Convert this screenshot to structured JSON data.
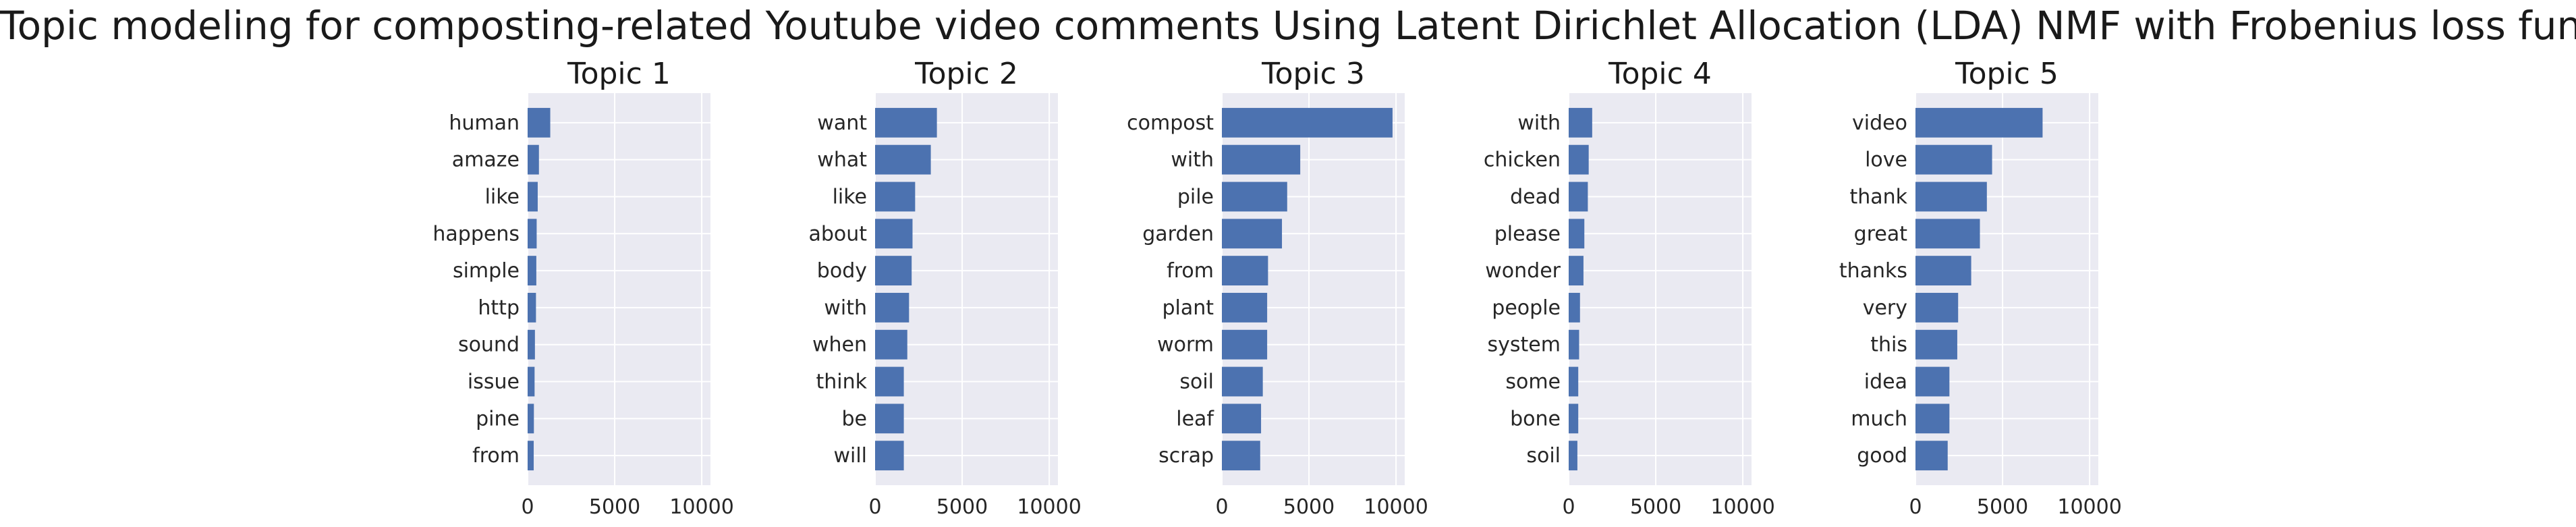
{
  "title": "Topic modeling for composting-related Youtube video comments Using Latent Dirichlet Allocation (LDA) NMF with Frobenius loss function",
  "colors": {
    "bar": "#4c72b0",
    "axes_background": "#eaeaf2",
    "grid": "#ffffff"
  },
  "chart_data": [
    {
      "type": "bar",
      "orientation": "horizontal",
      "title": "Topic 1",
      "categories": [
        "human",
        "amaze",
        "like",
        "happens",
        "simple",
        "http",
        "sound",
        "issue",
        "pine",
        "from"
      ],
      "values": [
        1300,
        650,
        580,
        520,
        500,
        480,
        420,
        400,
        360,
        350
      ],
      "xlim": [
        0,
        10500
      ],
      "xticks": [
        0,
        5000,
        10000
      ],
      "grid": true
    },
    {
      "type": "bar",
      "orientation": "horizontal",
      "title": "Topic 2",
      "categories": [
        "want",
        "what",
        "like",
        "about",
        "body",
        "with",
        "when",
        "think",
        "be",
        "will"
      ],
      "values": [
        3550,
        3200,
        2300,
        2150,
        2100,
        1950,
        1850,
        1650,
        1650,
        1650
      ],
      "xlim": [
        0,
        10500
      ],
      "xticks": [
        0,
        5000,
        10000
      ],
      "grid": true
    },
    {
      "type": "bar",
      "orientation": "horizontal",
      "title": "Topic 3",
      "categories": [
        "compost",
        "with",
        "pile",
        "garden",
        "from",
        "plant",
        "worm",
        "soil",
        "leaf",
        "scrap"
      ],
      "values": [
        9800,
        4500,
        3750,
        3450,
        2650,
        2600,
        2600,
        2350,
        2250,
        2200
      ],
      "xlim": [
        0,
        10500
      ],
      "xticks": [
        0,
        5000,
        10000
      ],
      "grid": true
    },
    {
      "type": "bar",
      "orientation": "horizontal",
      "title": "Topic 4",
      "categories": [
        "with",
        "chicken",
        "dead",
        "please",
        "wonder",
        "people",
        "system",
        "some",
        "bone",
        "soil"
      ],
      "values": [
        1350,
        1150,
        1100,
        900,
        850,
        650,
        600,
        550,
        550,
        500
      ],
      "xlim": [
        0,
        10500
      ],
      "xticks": [
        0,
        5000,
        10000
      ],
      "grid": true
    },
    {
      "type": "bar",
      "orientation": "horizontal",
      "title": "Topic 5",
      "categories": [
        "video",
        "love",
        "thank",
        "great",
        "thanks",
        "very",
        "this",
        "idea",
        "much",
        "good"
      ],
      "values": [
        7300,
        4400,
        4100,
        3700,
        3200,
        2450,
        2400,
        1950,
        1950,
        1850
      ],
      "xlim": [
        0,
        10500
      ],
      "xticks": [
        0,
        5000,
        10000
      ],
      "grid": true
    }
  ]
}
